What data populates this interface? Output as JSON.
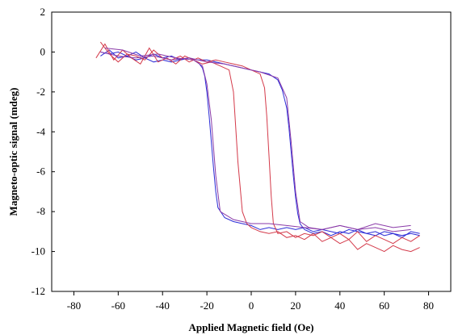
{
  "chart_data": {
    "type": "line",
    "title": "",
    "xlabel": "Applied Magnetic field (Oe)",
    "ylabel": "Magneto-optic  signal (mdeg)",
    "xlim": [
      -90,
      90
    ],
    "ylim": [
      -12,
      2
    ],
    "xticks": [
      -80,
      -60,
      -40,
      -20,
      0,
      20,
      40,
      60,
      80
    ],
    "yticks": [
      2,
      0,
      -2,
      -4,
      -6,
      -8,
      -10,
      -12
    ],
    "grid": false,
    "legend": "none",
    "colors": {
      "blue": "#2b2bd6",
      "red": "#d43a4a",
      "purple": "#8a3aa8"
    },
    "series": [
      {
        "color": "blue",
        "x": [
          -68,
          -64,
          -60,
          -56,
          -52,
          -48,
          -44,
          -40,
          -36,
          -32,
          -28,
          -24,
          -20,
          -16,
          -12,
          -8,
          -4,
          0,
          4,
          8,
          12,
          14,
          16,
          17,
          18,
          19,
          20,
          21,
          22,
          24,
          28,
          32,
          36,
          40,
          44,
          48,
          52,
          56,
          60,
          64,
          68,
          72,
          76
        ],
        "y": [
          -0.2,
          0.1,
          -0.3,
          -0.2,
          -0.4,
          -0.3,
          -0.5,
          -0.4,
          -0.5,
          -0.4,
          -0.3,
          -0.4,
          -0.4,
          -0.5,
          -0.6,
          -0.7,
          -0.8,
          -0.9,
          -1.0,
          -1.1,
          -1.4,
          -1.9,
          -2.8,
          -3.8,
          -5.0,
          -6.2,
          -7.3,
          -8.1,
          -8.6,
          -8.9,
          -9.1,
          -9.0,
          -9.2,
          -9.0,
          -9.1,
          -8.9,
          -9.1,
          -9.2,
          -9.0,
          -9.1,
          -9.2,
          -9.1,
          -9.2
        ]
      },
      {
        "color": "blue",
        "x": [
          76,
          72,
          68,
          64,
          60,
          56,
          52,
          48,
          44,
          40,
          36,
          32,
          28,
          24,
          20,
          16,
          12,
          8,
          4,
          0,
          -4,
          -8,
          -12,
          -15,
          -16,
          -17,
          -18,
          -19,
          -20,
          -21,
          -22,
          -24,
          -28,
          -32,
          -36,
          -40,
          -44,
          -48,
          -52,
          -56,
          -60,
          -64,
          -68
        ],
        "y": [
          -9.1,
          -9.0,
          -9.3,
          -9.1,
          -9.2,
          -9.0,
          -9.1,
          -9.0,
          -8.9,
          -9.1,
          -9.0,
          -8.9,
          -9.0,
          -8.8,
          -8.9,
          -8.8,
          -8.9,
          -8.8,
          -8.9,
          -8.7,
          -8.6,
          -8.5,
          -8.3,
          -7.8,
          -7.0,
          -5.8,
          -4.5,
          -3.2,
          -2.0,
          -1.2,
          -0.8,
          -0.5,
          -0.3,
          -0.4,
          -0.2,
          -0.3,
          -0.1,
          -0.3,
          0.0,
          -0.2,
          0.0,
          -0.1,
          0.0
        ]
      },
      {
        "color": "red",
        "x": [
          -70,
          -66,
          -62,
          -58,
          -54,
          -50,
          -46,
          -42,
          -38,
          -34,
          -30,
          -26,
          -22,
          -18,
          -14,
          -10,
          -8,
          -6,
          -4,
          -2,
          0,
          4,
          8,
          12,
          16,
          20,
          24,
          28,
          32,
          36,
          40,
          44,
          48,
          52,
          56,
          60,
          64,
          68,
          72,
          76
        ],
        "y": [
          -0.3,
          0.4,
          -0.4,
          0.1,
          -0.3,
          -0.6,
          0.2,
          -0.5,
          -0.3,
          -0.6,
          -0.2,
          -0.4,
          -0.6,
          -0.5,
          -0.7,
          -0.9,
          -2.0,
          -5.5,
          -8.0,
          -8.6,
          -8.8,
          -9.0,
          -9.1,
          -9.0,
          -9.3,
          -9.2,
          -9.4,
          -9.1,
          -9.5,
          -9.3,
          -9.6,
          -9.4,
          -9.9,
          -9.6,
          -9.8,
          -10.0,
          -9.7,
          -9.9,
          -10.0,
          -9.8
        ]
      },
      {
        "color": "red",
        "x": [
          76,
          72,
          68,
          64,
          60,
          56,
          52,
          48,
          44,
          40,
          36,
          32,
          28,
          24,
          20,
          16,
          12,
          10,
          9,
          8,
          7,
          6,
          4,
          0,
          -4,
          -8,
          -12,
          -16,
          -20,
          -24,
          -28,
          -32,
          -36,
          -40,
          -44,
          -48,
          -52,
          -56,
          -60,
          -64,
          -68
        ],
        "y": [
          -9.2,
          -9.5,
          -9.3,
          -9.6,
          -9.4,
          -9.2,
          -9.5,
          -9.0,
          -9.4,
          -9.1,
          -9.3,
          -9.0,
          -9.2,
          -9.1,
          -9.3,
          -9.0,
          -9.1,
          -8.6,
          -7.2,
          -5.2,
          -3.2,
          -1.8,
          -1.1,
          -0.9,
          -0.7,
          -0.6,
          -0.5,
          -0.4,
          -0.5,
          -0.3,
          -0.5,
          -0.2,
          -0.4,
          -0.3,
          0.1,
          -0.4,
          -0.2,
          -0.1,
          -0.5,
          -0.1,
          0.5
        ]
      },
      {
        "color": "purple",
        "x": [
          -68,
          -60,
          -52,
          -44,
          -36,
          -28,
          -20,
          -12,
          -4,
          4,
          12,
          16,
          18,
          20,
          22,
          26,
          32,
          40,
          48,
          56,
          64,
          72
        ],
        "y": [
          0.0,
          -0.2,
          -0.3,
          -0.2,
          -0.4,
          -0.3,
          -0.5,
          -0.6,
          -0.8,
          -1.0,
          -1.3,
          -2.3,
          -4.5,
          -7.0,
          -8.5,
          -8.8,
          -8.9,
          -8.7,
          -8.9,
          -8.6,
          -8.8,
          -8.7
        ]
      },
      {
        "color": "purple",
        "x": [
          72,
          64,
          56,
          48,
          40,
          32,
          24,
          16,
          8,
          0,
          -8,
          -14,
          -16,
          -18,
          -20,
          -22,
          -26,
          -34,
          -42,
          -50,
          -58,
          -66
        ],
        "y": [
          -8.9,
          -9.0,
          -8.8,
          -8.9,
          -8.7,
          -8.9,
          -8.8,
          -8.7,
          -8.6,
          -8.6,
          -8.4,
          -8.0,
          -6.2,
          -3.4,
          -1.6,
          -0.7,
          -0.4,
          -0.3,
          -0.1,
          -0.2,
          0.1,
          0.2
        ]
      }
    ]
  }
}
